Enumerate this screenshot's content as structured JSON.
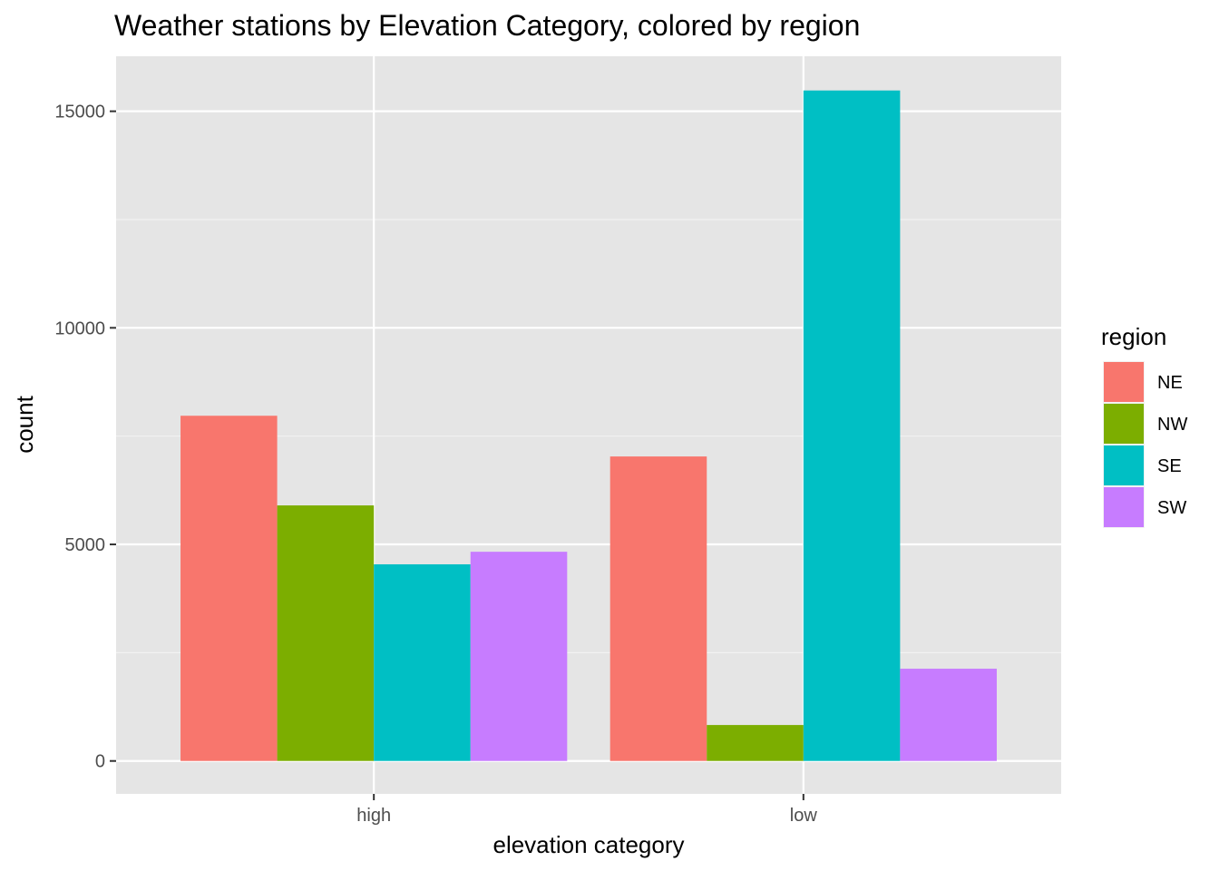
{
  "chart_data": {
    "type": "bar",
    "title": "Weather stations by Elevation Category, colored by region",
    "xlabel": "elevation category",
    "ylabel": "count",
    "categories": [
      "high",
      "low"
    ],
    "series": [
      {
        "name": "NE",
        "color": "#F8766D",
        "values": [
          7970,
          7030
        ]
      },
      {
        "name": "NW",
        "color": "#7CAE00",
        "values": [
          5900,
          830
        ]
      },
      {
        "name": "SE",
        "color": "#00BFC4",
        "values": [
          4540,
          15480
        ]
      },
      {
        "name": "SW",
        "color": "#C77CFF",
        "values": [
          4830,
          2130
        ]
      }
    ],
    "ylim": [
      -760,
      16270
    ],
    "yticks": [
      0,
      5000,
      10000,
      15000
    ],
    "grid": true,
    "panel_background": "#E5E5E5",
    "legend": {
      "title": "region",
      "placement": "right"
    }
  }
}
